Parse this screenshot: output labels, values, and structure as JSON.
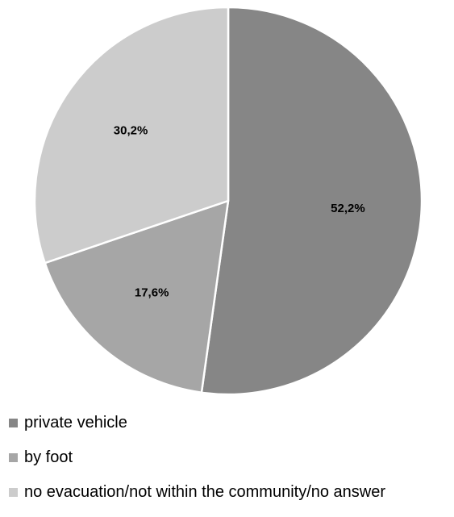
{
  "chart_data": {
    "type": "pie",
    "title": "",
    "slices": [
      {
        "label": "private vehicle",
        "value": 52.2,
        "value_label": "52,2%",
        "color": "#868686"
      },
      {
        "label": "by foot",
        "value": 17.6,
        "value_label": "17,6%",
        "color": "#a6a6a6"
      },
      {
        "label": "no evacuation/not within the community/no answer",
        "value": 30.2,
        "value_label": "30,2%",
        "color": "#cccccc"
      }
    ],
    "legend_position": "bottom-left",
    "start_angle": "12 o'clock",
    "direction": "clockwise",
    "slice_border_color": "#ffffff"
  }
}
